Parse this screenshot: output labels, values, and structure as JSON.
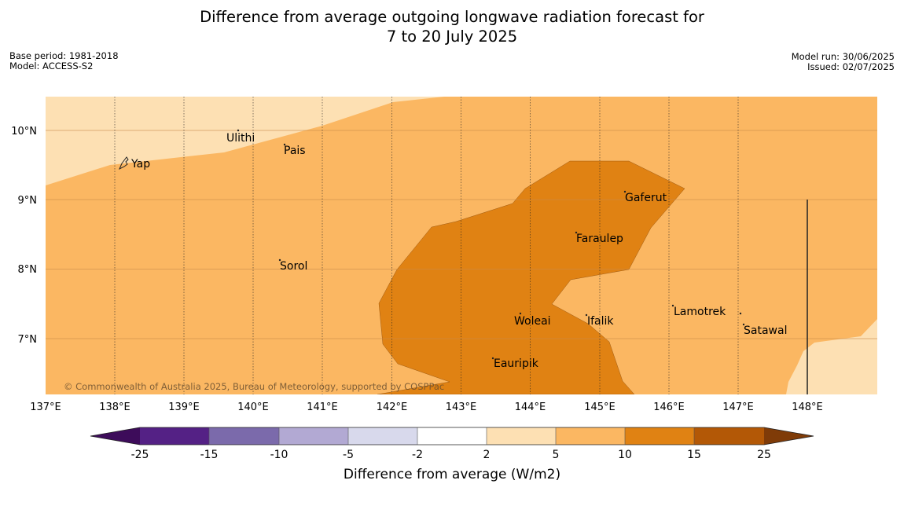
{
  "title": {
    "line1": "Difference from average outgoing longwave radiation forecast for",
    "line2": "7 to 20 July 2025"
  },
  "meta_left": {
    "base_period": "Base period: 1981-2018",
    "model": "Model: ACCESS-S2"
  },
  "meta_right": {
    "model_run": "Model run: 30/06/2025",
    "issued": "Issued: 02/07/2025"
  },
  "map": {
    "lat_labels": [
      "10°N",
      "9°N",
      "8°N",
      "7°N"
    ],
    "lon_labels": [
      "137°E",
      "138°E",
      "139°E",
      "140°E",
      "141°E",
      "142°E",
      "143°E",
      "144°E",
      "145°E",
      "146°E",
      "147°E",
      "148°E"
    ],
    "places": [
      "Yap",
      "Ulithi",
      "Pais",
      "Gaferut",
      "Faraulep",
      "Sorol",
      "Lamotrek",
      "Woleai",
      "Ifalik",
      "Satawal",
      "Eauripik"
    ],
    "copyright": "© Commonwealth of Australia 2025, Bureau of Meteorology, supported by COSPPac"
  },
  "colorbar": {
    "tick_labels": [
      "-25",
      "-15",
      "-10",
      "-5",
      "-2",
      "2",
      "5",
      "10",
      "15",
      "25"
    ],
    "label": "Difference from average (W/m2)",
    "colors": {
      "below_min": "#3d0c5a",
      "c1": "#542185",
      "c2": "#7b6aab",
      "c3": "#b2a9d3",
      "c4": "#d8d9ec",
      "c5": "#ffffff",
      "c6": "#fde0b3",
      "c7": "#fbb762",
      "c8": "#e08213",
      "c9": "#b35806",
      "above_max": "#7f3b08"
    }
  }
}
